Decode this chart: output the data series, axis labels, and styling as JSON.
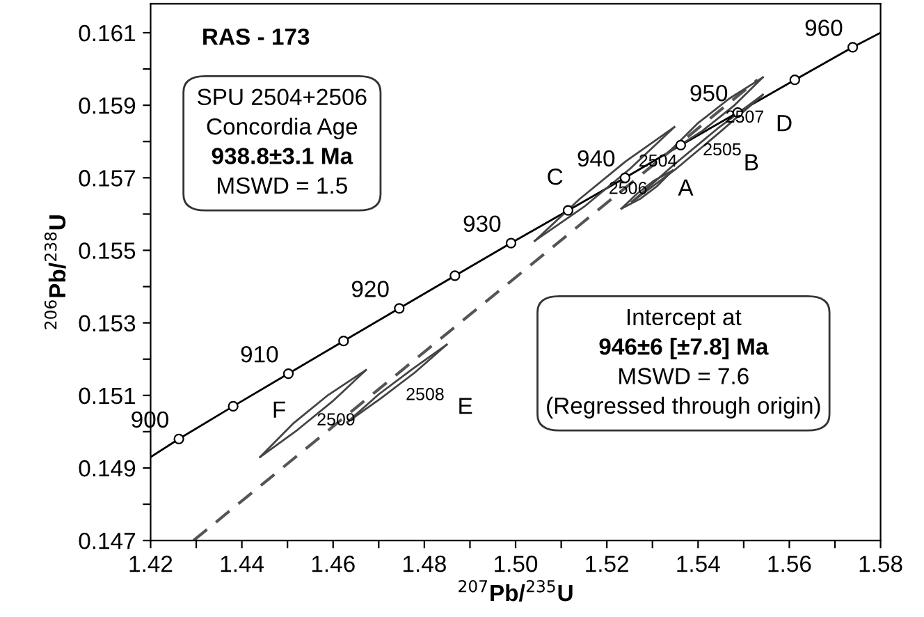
{
  "chart_data": {
    "type": "line",
    "title": "RAS - 173",
    "xlabel": "$^{207}$Pb/$^{235}$U",
    "ylabel": "$^{206}$Pb/$^{238}$U",
    "xlim": [
      1.42,
      1.58
    ],
    "ylim": [
      0.147,
      0.1618
    ],
    "xticks": [
      1.42,
      {
        "value": 1.43,
        "label": null
      },
      1.44,
      {
        "value": 1.45,
        "label": null
      },
      1.46,
      {
        "value": 1.47,
        "label": null
      },
      1.48,
      {
        "value": 1.49,
        "label": null
      },
      {
        "value": 1.5,
        "label": "1.50"
      },
      {
        "value": 1.51,
        "label": null
      },
      1.52,
      {
        "value": 1.53,
        "label": null
      },
      1.54,
      {
        "value": 1.55,
        "label": null
      },
      1.56,
      {
        "value": 1.57,
        "label": null
      },
      1.58
    ],
    "yticks": [
      0.147,
      {
        "value": 0.148,
        "label": null
      },
      0.149,
      {
        "value": 0.15,
        "label": null
      },
      0.151,
      {
        "value": 0.152,
        "label": null
      },
      0.153,
      {
        "value": 0.154,
        "label": null
      },
      0.155,
      {
        "value": 0.156,
        "label": null
      },
      0.157,
      {
        "value": 0.158,
        "label": null
      },
      0.159,
      {
        "value": 0.16,
        "label": null
      },
      0.161
    ],
    "grid": false,
    "series": [
      {
        "color": "#000000",
        "line_style": "solid",
        "marker": "none",
        "x": [
          1.42,
          1.4262,
          1.4381,
          1.4502,
          1.4623,
          1.4745,
          1.4867,
          1.499,
          1.5115,
          1.524,
          1.5362,
          1.5487,
          1.5612,
          1.5739,
          1.58
        ],
        "values": [
          0.1493,
          0.1498,
          0.1507,
          0.1516,
          0.1525,
          0.1534,
          0.1543,
          0.1552,
          0.1561,
          0.157,
          0.1579,
          0.1588,
          0.1597,
          0.1606,
          0.161
        ]
      },
      {
        "type": "scatter",
        "color": "#000000",
        "marker": "circle",
        "x": [
          1.4262,
          1.4381,
          1.4502,
          1.4623,
          1.4745,
          1.4867,
          1.499,
          1.5115,
          1.524,
          1.5362,
          1.5487,
          1.5612,
          1.5739
        ],
        "values": [
          0.1498,
          0.1507,
          0.1516,
          0.1525,
          0.1534,
          0.1543,
          0.1552,
          0.1561,
          0.157,
          0.1579,
          0.1588,
          0.1597,
          0.1606
        ]
      },
      {
        "color": "#555555",
        "line_style": "dashed",
        "marker": "none",
        "x": [
          1.4294,
          1.553
        ],
        "values": [
          0.147,
          0.1597
        ]
      },
      {
        "color": "#444444",
        "line_style": "solid",
        "marker": "none",
        "x": [
          1.444,
          1.4512,
          1.4589,
          1.4672
        ],
        "values": [
          0.1493,
          0.15022,
          0.15101,
          0.1517
        ]
      },
      {
        "color": "#444444",
        "line_style": "solid",
        "marker": "none",
        "x": [
          1.444,
          1.4522,
          1.4599,
          1.4672
        ],
        "values": [
          0.1493,
          0.15005,
          0.15084,
          0.1517
        ]
      },
      {
        "color": "#444444",
        "line_style": "solid",
        "marker": "none",
        "x": [
          1.4631,
          1.47,
          1.4774,
          1.4849
        ],
        "values": [
          0.15026,
          0.15103,
          0.15173,
          0.1524
        ]
      },
      {
        "color": "#444444",
        "line_style": "solid",
        "marker": "none",
        "x": [
          1.4631,
          1.4705,
          1.4779,
          1.4849
        ],
        "values": [
          0.15026,
          0.15092,
          0.15163,
          0.1524
        ]
      },
      {
        "color": "#444444",
        "line_style": "solid",
        "marker": "none",
        "x": [
          1.5042,
          1.514,
          1.5241,
          1.5348
        ],
        "values": [
          0.15526,
          0.15641,
          0.15745,
          0.1584
        ]
      },
      {
        "color": "#444444",
        "line_style": "solid",
        "marker": "none",
        "x": [
          1.5042,
          1.515,
          1.5251,
          1.5348
        ],
        "values": [
          0.15526,
          0.1562,
          0.15725,
          0.1584
        ]
      },
      {
        "color": "#444444",
        "line_style": "solid",
        "marker": "none",
        "x": [
          1.5232,
          1.5266,
          1.5303,
          1.5344
        ],
        "values": [
          0.15615,
          0.15656,
          0.15692,
          0.1572
        ]
      },
      {
        "color": "#444444",
        "line_style": "solid",
        "marker": "none",
        "x": [
          1.5232,
          1.5273,
          1.5311,
          1.5344
        ],
        "values": [
          0.15615,
          0.15642,
          0.15678,
          0.1572
        ]
      },
      {
        "color": "#444444",
        "line_style": "solid",
        "marker": "none",
        "x": [
          1.5255,
          1.5348,
          1.5443,
          1.5542
        ],
        "values": [
          0.15634,
          0.15737,
          0.15836,
          0.15929
        ]
      },
      {
        "color": "#444444",
        "line_style": "solid",
        "marker": "none",
        "x": [
          1.5255,
          1.5353,
          1.5448,
          1.5542
        ],
        "values": [
          0.15634,
          0.15726,
          0.15826,
          0.15929
        ]
      },
      {
        "color": "#444444",
        "line_style": "solid",
        "marker": "none",
        "x": [
          1.5336,
          1.5399,
          1.5468,
          1.5542
        ],
        "values": [
          0.15771,
          0.1585,
          0.15918,
          0.15977
        ]
      },
      {
        "color": "#444444",
        "line_style": "solid",
        "marker": "none",
        "x": [
          1.5336,
          1.5409,
          1.5478,
          1.5542
        ],
        "values": [
          0.15771,
          0.15829,
          0.15898,
          0.15977
        ]
      }
    ],
    "annotations": [
      {
        "text": "900",
        "x": 1.4262,
        "y": 0.1498
      },
      {
        "text": "910",
        "x": 1.4502,
        "y": 0.1516
      },
      {
        "text": "920",
        "x": 1.4745,
        "y": 0.1534
      },
      {
        "text": "930",
        "x": 1.499,
        "y": 0.1552
      },
      {
        "text": "940",
        "x": 1.524,
        "y": 0.157
      },
      {
        "text": "950",
        "x": 1.5487,
        "y": 0.1588
      },
      {
        "text": "960",
        "x": 1.5739,
        "y": 0.1606
      },
      "C",
      "A",
      "B",
      "D",
      "E",
      "F",
      "2504",
      "2506",
      "2505",
      "2507",
      "2508",
      "2509",
      "SPU 2504+2506",
      "Concordia Age",
      "938.8±3.1 Ma",
      "MSWD = 1.5",
      "Intercept at",
      "946±6 [±7.8] Ma",
      "MSWD = 7.6",
      "(Regressed through origin)"
    ]
  }
}
